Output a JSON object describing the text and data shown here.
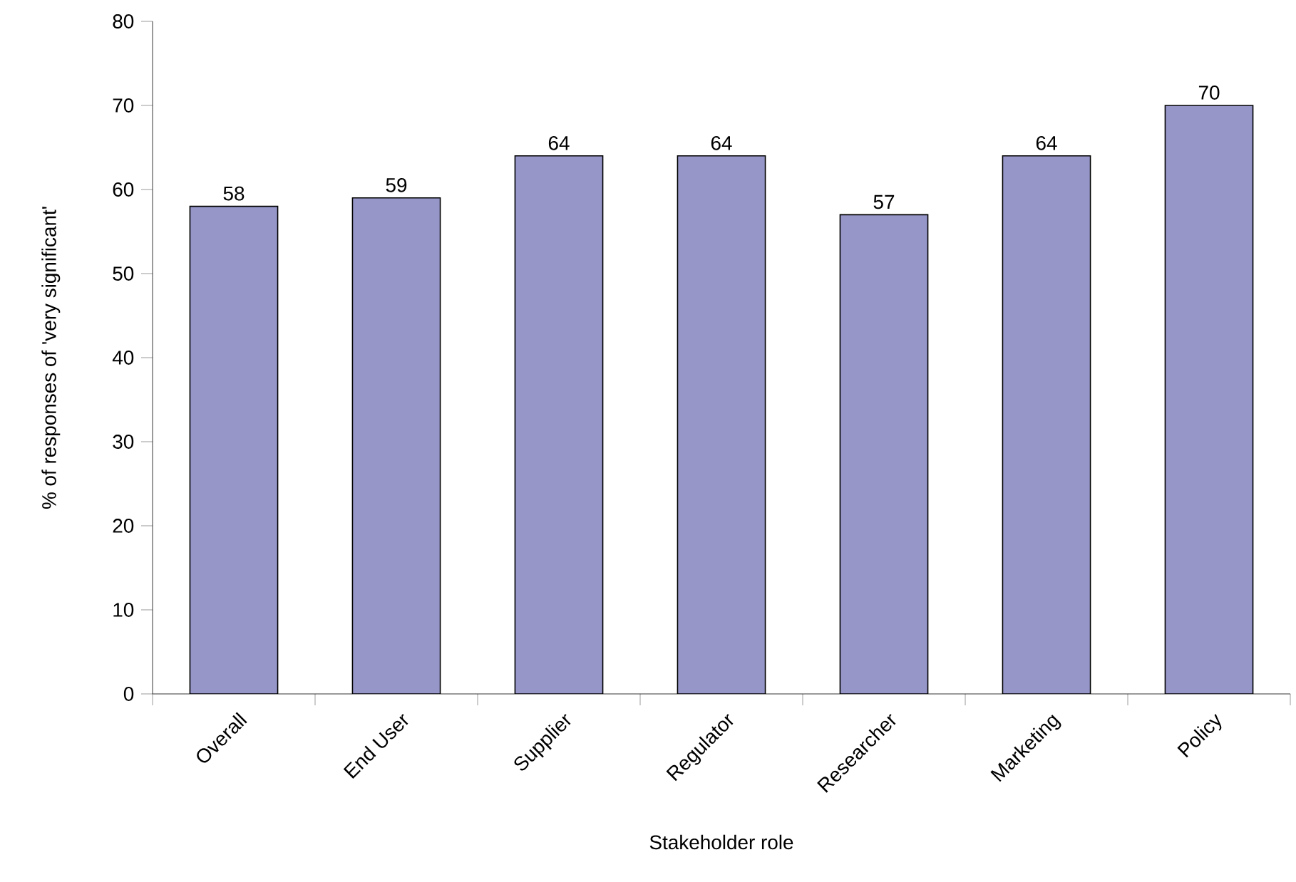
{
  "chart_data": {
    "type": "bar",
    "xlabel": "Stakeholder role",
    "ylabel": "% of responses of 'very significant'",
    "categories": [
      "Overall",
      "End User",
      "Supplier",
      "Regulator",
      "Researcher",
      "Marketing",
      "Policy"
    ],
    "values": [
      58,
      59,
      64,
      64,
      57,
      64,
      70
    ],
    "color": "#9696c8",
    "ylim": [
      0,
      80
    ],
    "yticks": [
      0,
      10,
      20,
      30,
      40,
      50,
      60,
      70,
      80
    ],
    "data_labels": true
  }
}
